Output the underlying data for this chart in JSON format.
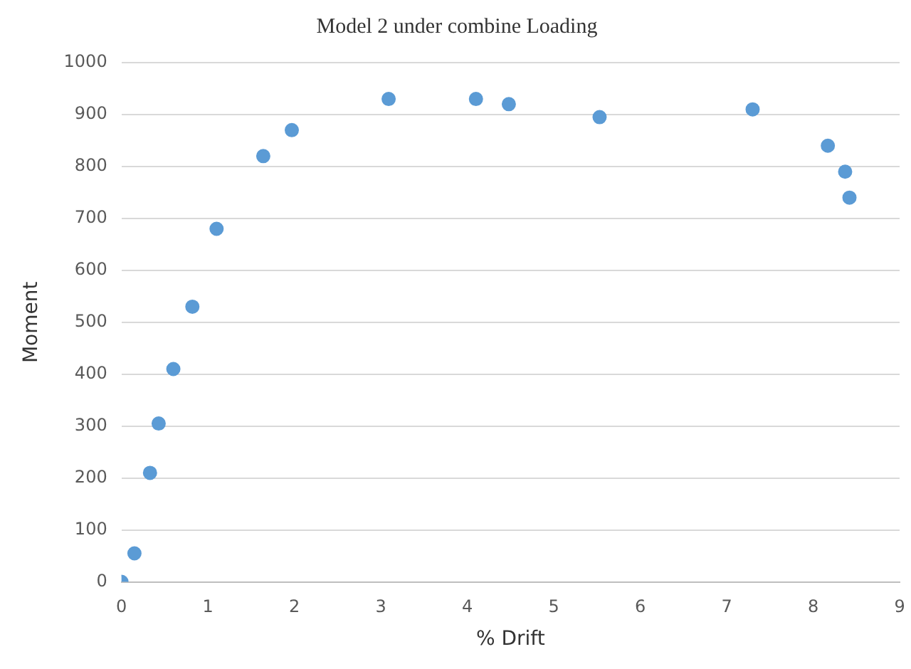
{
  "chart_data": {
    "type": "scatter",
    "title": "Model 2 under combine Loading",
    "xlabel": "% Drift",
    "ylabel": "Moment",
    "x": [
      0,
      0.15,
      0.33,
      0.43,
      0.6,
      0.82,
      1.1,
      1.64,
      1.97,
      3.09,
      4.1,
      4.48,
      5.53,
      7.3,
      8.17,
      8.37,
      8.42
    ],
    "series": [
      {
        "color": "#5b9bd5",
        "values": [
          0,
          55,
          210,
          305,
          410,
          530,
          680,
          820,
          870,
          930,
          930,
          920,
          895,
          910,
          840,
          790,
          740
        ]
      }
    ],
    "xlim": [
      0,
      9
    ],
    "xticks": [
      0,
      1,
      2,
      3,
      4,
      5,
      6,
      7,
      8,
      9
    ],
    "ylim": [
      0,
      1000
    ],
    "yticks": [
      0,
      100,
      200,
      300,
      400,
      500,
      600,
      700,
      800,
      900,
      1000
    ],
    "grid": "y",
    "marker": "circle",
    "legend": false
  }
}
